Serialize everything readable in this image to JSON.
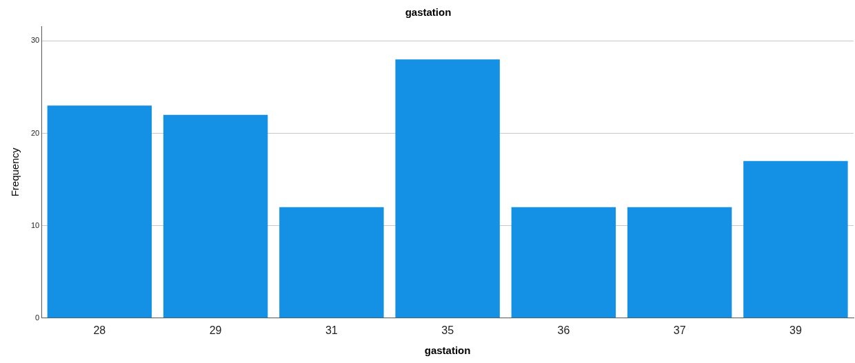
{
  "chart_data": {
    "type": "bar",
    "title": "gastation",
    "xlabel": "gastation",
    "ylabel": "Frequency",
    "categories": [
      "28",
      "29",
      "31",
      "35",
      "36",
      "37",
      "39"
    ],
    "values": [
      23,
      22,
      12,
      28,
      12,
      12,
      17
    ],
    "color": "#1490e4",
    "ylim": [
      0,
      31.6
    ],
    "yticks": [
      0,
      10,
      20,
      30
    ],
    "grid": "y",
    "legend": false
  }
}
